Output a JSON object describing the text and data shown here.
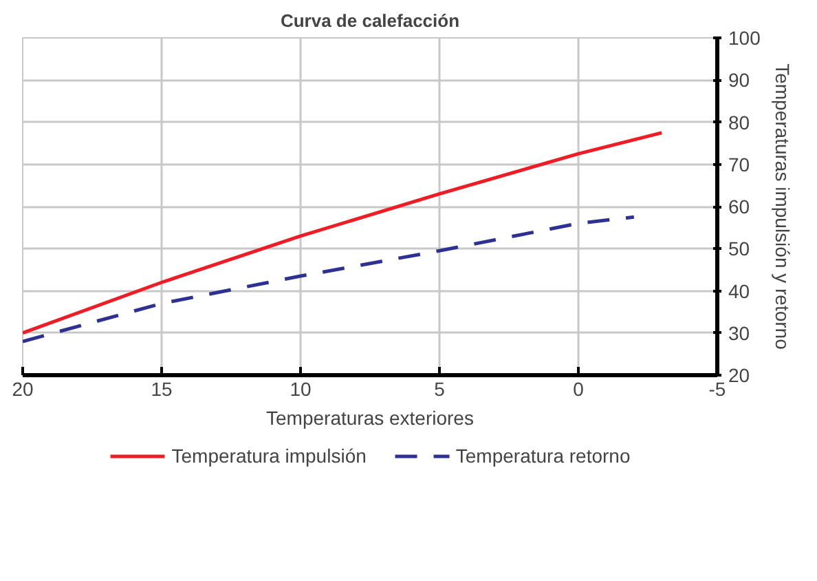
{
  "chart_data": {
    "type": "line",
    "title": "Curva de calefacción",
    "xlabel": "Temperaturas exteriores",
    "ylabel": "Temperaturas impulsión y retorno",
    "xlim": [
      20,
      -5
    ],
    "xticks": [
      20,
      15,
      10,
      5,
      0,
      {
        "value": -5,
        "label": "-5"
      }
    ],
    "ylim": [
      20,
      100
    ],
    "yticks": [
      20,
      30,
      40,
      50,
      60,
      70,
      80,
      90,
      100
    ],
    "grid": true,
    "legend": "bottom",
    "series": [
      {
        "name": "Temperatura impulsión",
        "color": "#ee1c25",
        "x": [
          20,
          15,
          10,
          5,
          0,
          -3
        ],
        "values": [
          30,
          42,
          53,
          63,
          72.5,
          77.5
        ],
        "line_style": "solid"
      },
      {
        "name": "Temperatura retorno",
        "color": "#2e3192",
        "x": [
          20,
          15,
          10,
          5,
          0,
          -2
        ],
        "values": [
          28,
          37,
          43.5,
          49.5,
          56,
          57.5
        ],
        "line_style": "dashed"
      }
    ]
  }
}
